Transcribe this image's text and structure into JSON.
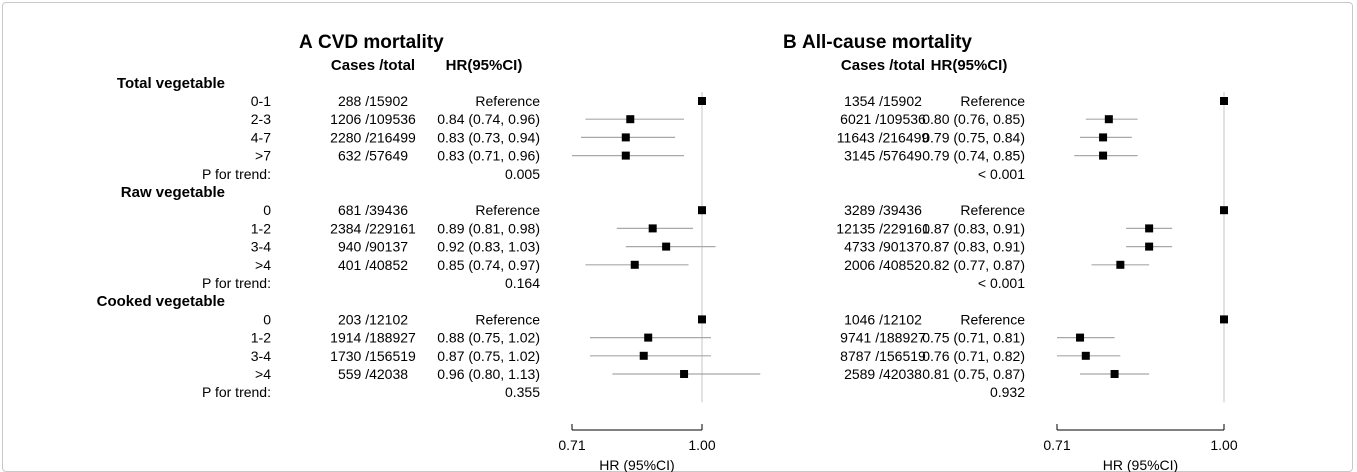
{
  "panels": [
    {
      "letter": "A",
      "title": "CVD mortality",
      "col_cases": "Cases /total",
      "col_hr": "HR(95%CI)",
      "axis_title": "HR (95%CI)"
    },
    {
      "letter": "B",
      "title": "All-cause mortality",
      "col_cases": "Cases /total",
      "col_hr": "HR(95%CI)",
      "axis_title": "HR (95%CI)"
    }
  ],
  "groups": [
    {
      "label": "Total vegetable",
      "rows": [
        "0-1",
        "2-3",
        "4-7",
        ">7"
      ]
    },
    {
      "label": "Raw vegetable",
      "rows": [
        "0",
        "1-2",
        "3-4",
        ">4"
      ]
    },
    {
      "label": "Cooked vegetable",
      "rows": [
        "0",
        "1-2",
        "3-4",
        ">4"
      ]
    }
  ],
  "p_trend_label": "P for trend:",
  "chart_data": [
    {
      "type": "forest",
      "title": "CVD mortality",
      "xlabel": "HR (95%CI)",
      "xlim": [
        0.71,
        1.0
      ],
      "xticks": [
        "0.71",
        "1.00"
      ],
      "reference_line": 1.0,
      "rows": [
        {
          "group": "Total vegetable",
          "category": "0-1",
          "cases": "288 /15902",
          "hr_text": "Reference",
          "hr": 1.0,
          "lo": null,
          "hi": null
        },
        {
          "group": "Total vegetable",
          "category": "2-3",
          "cases": "1206 /109536",
          "hr_text": "0.84 (0.74, 0.96)",
          "hr": 0.84,
          "lo": 0.74,
          "hi": 0.96
        },
        {
          "group": "Total vegetable",
          "category": "4-7",
          "cases": "2280 /216499",
          "hr_text": "0.83 (0.73, 0.94)",
          "hr": 0.83,
          "lo": 0.73,
          "hi": 0.94
        },
        {
          "group": "Total vegetable",
          "category": ">7",
          "cases": "632 /57649",
          "hr_text": "0.83 (0.71, 0.96)",
          "hr": 0.83,
          "lo": 0.71,
          "hi": 0.96
        },
        {
          "group": "Raw vegetable",
          "category": "0",
          "cases": "681 /39436",
          "hr_text": "Reference",
          "hr": 1.0,
          "lo": null,
          "hi": null
        },
        {
          "group": "Raw vegetable",
          "category": "1-2",
          "cases": "2384 /229161",
          "hr_text": "0.89 (0.81, 0.98)",
          "hr": 0.89,
          "lo": 0.81,
          "hi": 0.98
        },
        {
          "group": "Raw vegetable",
          "category": "3-4",
          "cases": "940 /90137",
          "hr_text": "0.92 (0.83, 1.03)",
          "hr": 0.92,
          "lo": 0.83,
          "hi": 1.03
        },
        {
          "group": "Raw vegetable",
          "category": ">4",
          "cases": "401 /40852",
          "hr_text": "0.85 (0.74, 0.97)",
          "hr": 0.85,
          "lo": 0.74,
          "hi": 0.97
        },
        {
          "group": "Cooked vegetable",
          "category": "0",
          "cases": "203 /12102",
          "hr_text": "Reference",
          "hr": 1.0,
          "lo": null,
          "hi": null
        },
        {
          "group": "Cooked vegetable",
          "category": "1-2",
          "cases": "1914 /188927",
          "hr_text": "0.88 (0.75, 1.02)",
          "hr": 0.88,
          "lo": 0.75,
          "hi": 1.02
        },
        {
          "group": "Cooked vegetable",
          "category": "3-4",
          "cases": "1730 /156519",
          "hr_text": "0.87 (0.75, 1.02)",
          "hr": 0.87,
          "lo": 0.75,
          "hi": 1.02
        },
        {
          "group": "Cooked vegetable",
          "category": ">4",
          "cases": "559 /42038",
          "hr_text": "0.96 (0.80, 1.13)",
          "hr": 0.96,
          "lo": 0.8,
          "hi": 1.13
        }
      ],
      "p_trend": [
        "0.005",
        "0.164",
        "0.355"
      ]
    },
    {
      "type": "forest",
      "title": "All-cause mortality",
      "xlabel": "HR (95%CI)",
      "xlim": [
        0.71,
        1.0
      ],
      "xticks": [
        "0.71",
        "1.00"
      ],
      "reference_line": 1.0,
      "rows": [
        {
          "group": "Total vegetable",
          "category": "0-1",
          "cases": "1354 /15902",
          "hr_text": "Reference",
          "hr": 1.0,
          "lo": null,
          "hi": null
        },
        {
          "group": "Total vegetable",
          "category": "2-3",
          "cases": "6021 /109536",
          "hr_text": "0.80 (0.76, 0.85)",
          "hr": 0.8,
          "lo": 0.76,
          "hi": 0.85
        },
        {
          "group": "Total vegetable",
          "category": "4-7",
          "cases": "11643 /216499",
          "hr_text": "0.79 (0.75, 0.84)",
          "hr": 0.79,
          "lo": 0.75,
          "hi": 0.84
        },
        {
          "group": "Total vegetable",
          "category": ">7",
          "cases": "3145 /57649",
          "hr_text": "0.79 (0.74, 0.85)",
          "hr": 0.79,
          "lo": 0.74,
          "hi": 0.85
        },
        {
          "group": "Raw vegetable",
          "category": "0",
          "cases": "3289 /39436",
          "hr_text": "Reference",
          "hr": 1.0,
          "lo": null,
          "hi": null
        },
        {
          "group": "Raw vegetable",
          "category": "1-2",
          "cases": "12135 /229161",
          "hr_text": "0.87 (0.83, 0.91)",
          "hr": 0.87,
          "lo": 0.83,
          "hi": 0.91
        },
        {
          "group": "Raw vegetable",
          "category": "3-4",
          "cases": "4733 /90137",
          "hr_text": "0.87 (0.83, 0.91)",
          "hr": 0.87,
          "lo": 0.83,
          "hi": 0.91
        },
        {
          "group": "Raw vegetable",
          "category": ">4",
          "cases": "2006 /40852",
          "hr_text": "0.82 (0.77, 0.87)",
          "hr": 0.82,
          "lo": 0.77,
          "hi": 0.87
        },
        {
          "group": "Cooked vegetable",
          "category": "0",
          "cases": "1046 /12102",
          "hr_text": "Reference",
          "hr": 1.0,
          "lo": null,
          "hi": null
        },
        {
          "group": "Cooked vegetable",
          "category": "1-2",
          "cases": "9741 /188927",
          "hr_text": "0.75 (0.71, 0.81)",
          "hr": 0.75,
          "lo": 0.71,
          "hi": 0.81
        },
        {
          "group": "Cooked vegetable",
          "category": "3-4",
          "cases": "8787 /156519",
          "hr_text": "0.76 (0.71, 0.82)",
          "hr": 0.76,
          "lo": 0.71,
          "hi": 0.82
        },
        {
          "group": "Cooked vegetable",
          "category": ">4",
          "cases": "2589 /42038",
          "hr_text": "0.81 (0.75, 0.87)",
          "hr": 0.81,
          "lo": 0.75,
          "hi": 0.87
        }
      ],
      "p_trend": [
        "< 0.001",
        "< 0.001",
        "0.932"
      ]
    }
  ]
}
